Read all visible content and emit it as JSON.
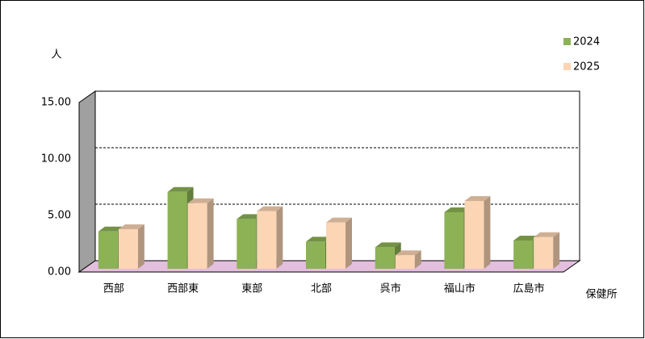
{
  "chart_data": {
    "type": "bar3d",
    "y_label": "人",
    "x_label": "保健所",
    "categories": [
      "西部",
      "西部東",
      "東部",
      "北部",
      "呉市",
      "福山市",
      "広島市"
    ],
    "series": [
      {
        "name": "2024",
        "color": "#8db255",
        "values": [
          3.3,
          6.8,
          4.4,
          2.4,
          1.9,
          5.0,
          2.5
        ]
      },
      {
        "name": "2025",
        "color": "#fcd5b4",
        "values": [
          3.5,
          5.8,
          5.1,
          4.1,
          1.2,
          6.0,
          2.8
        ]
      }
    ],
    "ylim": [
      0,
      15
    ],
    "yticks": [
      {
        "value": 0,
        "label": "0.00"
      },
      {
        "value": 5,
        "label": "5.00"
      },
      {
        "value": 10,
        "label": "10.00"
      },
      {
        "value": 15,
        "label": "15.00"
      }
    ],
    "grid": true,
    "legend": "top-right"
  }
}
